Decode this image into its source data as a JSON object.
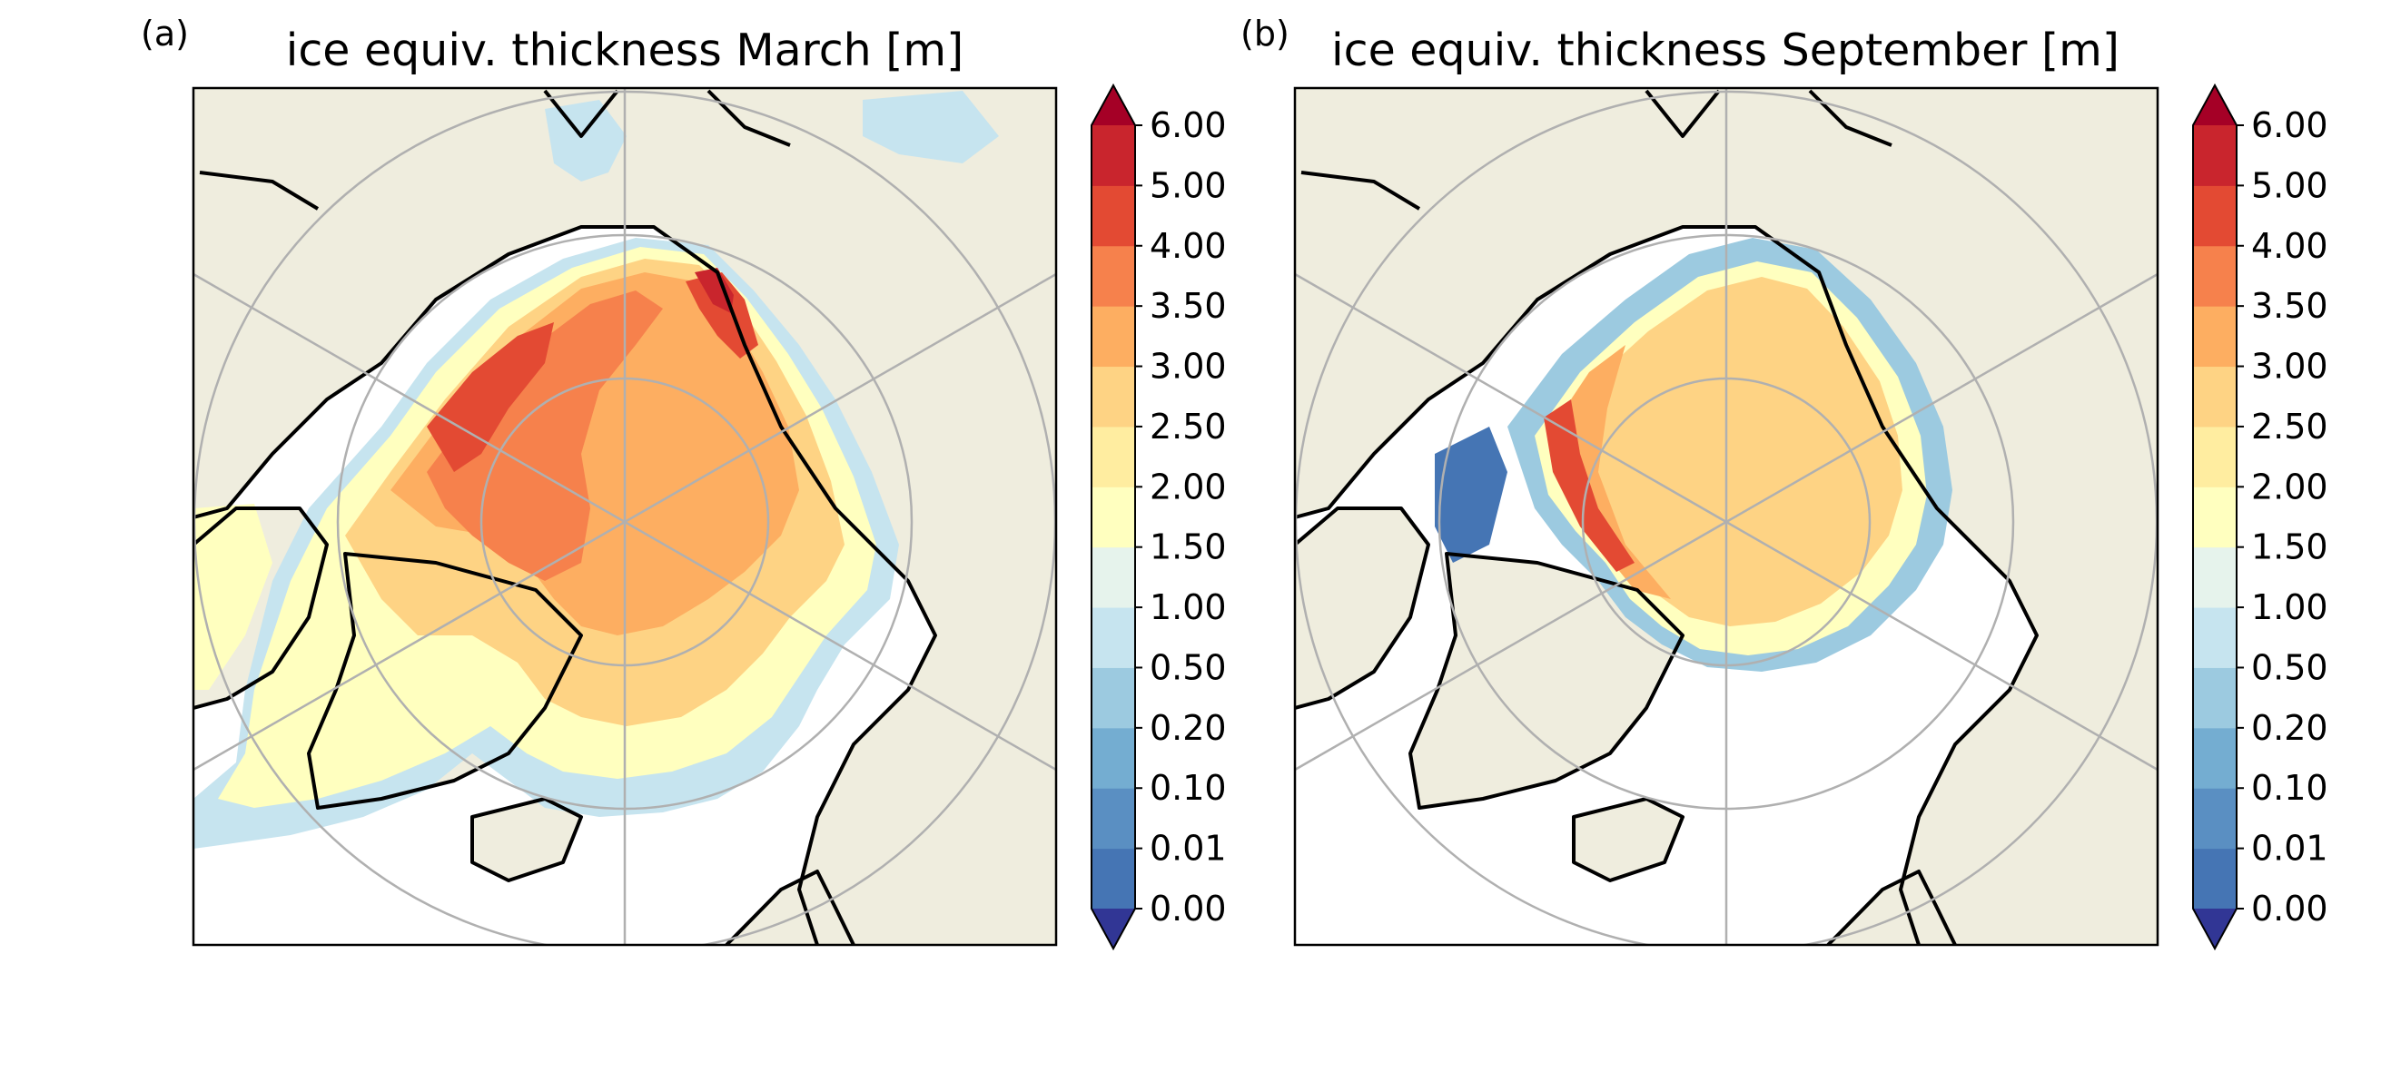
{
  "figure": {
    "panels": [
      {
        "label": "(a)",
        "title": "ice equiv. thickness March [m]"
      },
      {
        "label": "(b)",
        "title": "ice equiv. thickness September [m]"
      }
    ]
  },
  "colorbar": {
    "ticks": [
      "0.00",
      "0.01",
      "0.10",
      "0.20",
      "0.50",
      "1.00",
      "1.50",
      "2.00",
      "2.50",
      "3.00",
      "3.50",
      "4.00",
      "5.00",
      "6.00"
    ],
    "under_color": "#313695",
    "over_color": "#a50026",
    "colors": [
      "#4575b4",
      "#5a8fc2",
      "#74add1",
      "#9ccae0",
      "#c6e4ef",
      "#e6f3ec",
      "#ffffbf",
      "#ffeda0",
      "#fed384",
      "#fdae61",
      "#f6814c",
      "#e34a33",
      "#c9252d"
    ]
  },
  "map": {
    "land_color": "#efedde",
    "open_water_color": "#ffffff",
    "graticule_color": "#b0b0b0",
    "coastline_color": "#000000"
  },
  "chart_data": [
    {
      "type": "map",
      "projection": "north-polar-stereographic",
      "title": "ice equiv. thickness March [m]",
      "colorbar_ticks": [
        0.0,
        0.01,
        0.1,
        0.2,
        0.5,
        1.0,
        1.5,
        2.0,
        2.5,
        3.0,
        3.5,
        4.0,
        5.0,
        6.0
      ],
      "colorbar_extend": "both"
    },
    {
      "type": "map",
      "projection": "north-polar-stereographic",
      "title": "ice equiv. thickness September [m]",
      "colorbar_ticks": [
        0.0,
        0.01,
        0.1,
        0.2,
        0.5,
        1.0,
        1.5,
        2.0,
        2.5,
        3.0,
        3.5,
        4.0,
        5.0,
        6.0
      ],
      "colorbar_extend": "both"
    }
  ]
}
